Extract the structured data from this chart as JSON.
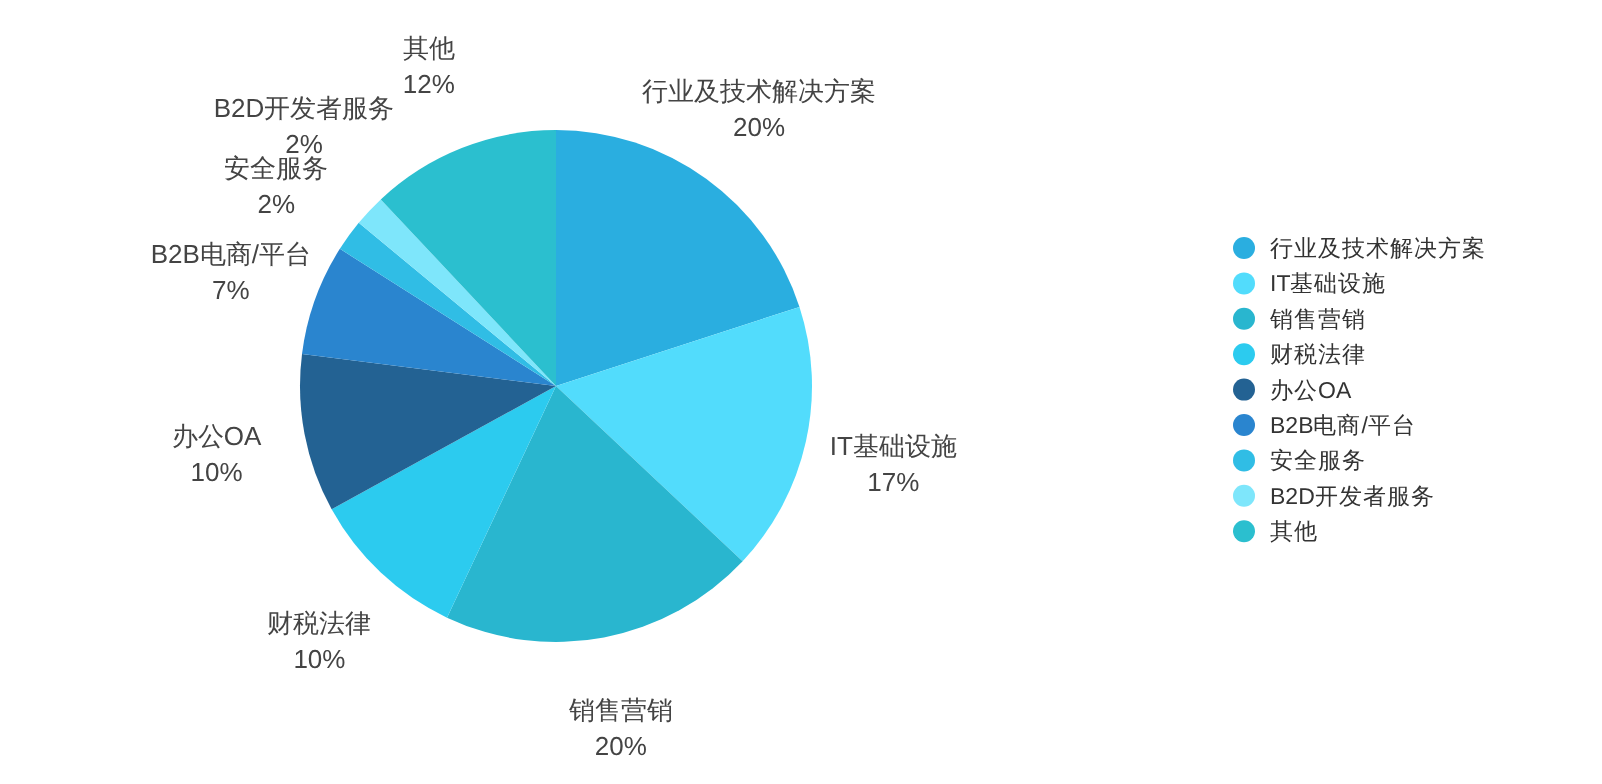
{
  "chart_data": {
    "type": "pie",
    "categories": [
      "行业及技术解决方案",
      "IT基础设施",
      "销售营销",
      "财税法律",
      "办公OA",
      "B2B电商/平台",
      "安全服务",
      "B2D开发者服务",
      "其他"
    ],
    "values": [
      20,
      17,
      20,
      10,
      10,
      7,
      2,
      2,
      12
    ],
    "value_labels": [
      "20%",
      "17%",
      "20%",
      "10%",
      "10%",
      "7%",
      "2%",
      "2%",
      "12%"
    ],
    "colors": [
      "#2aaee0",
      "#52dcfc",
      "#29b6cf",
      "#2ccbef",
      "#236293",
      "#2a85cf",
      "#30bde5",
      "#7ee6fb",
      "#2bbfcf"
    ],
    "legend": "right"
  }
}
